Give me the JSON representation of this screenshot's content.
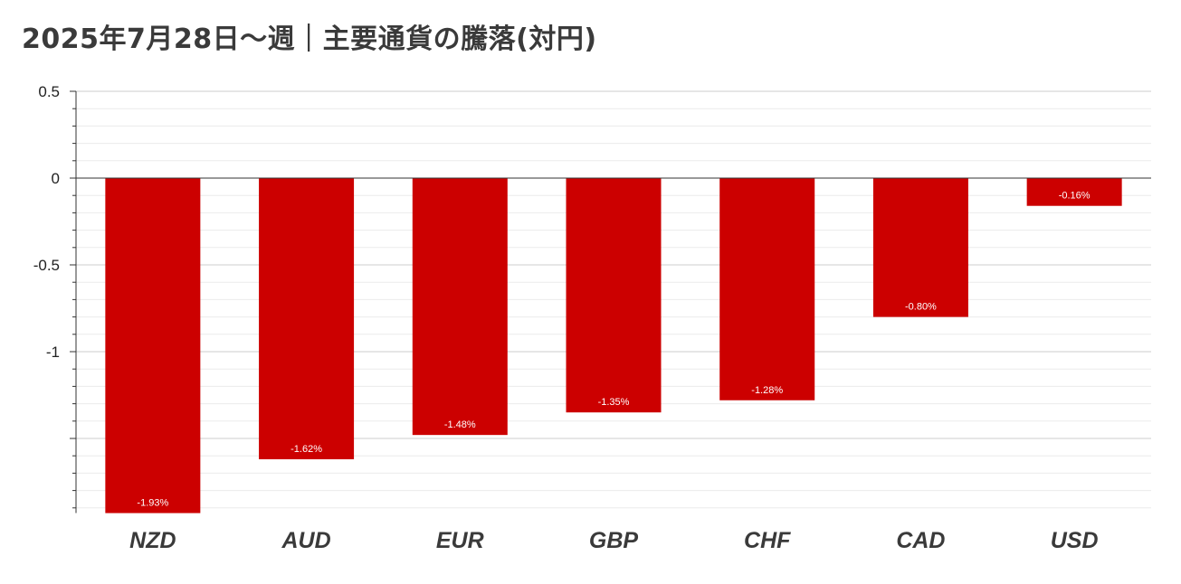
{
  "chart_data": {
    "type": "bar",
    "title": "2025年7月28日〜週｜主要通貨の騰落(対円)",
    "categories": [
      "NZD",
      "AUD",
      "EUR",
      "GBP",
      "CHF",
      "CAD",
      "USD"
    ],
    "values": [
      -1.93,
      -1.62,
      -1.48,
      -1.35,
      -1.28,
      -0.8,
      -0.16
    ],
    "data_labels": [
      "-1.93%",
      "-1.62%",
      "-1.48%",
      "-1.35%",
      "-1.28%",
      "-0.80%",
      "-0.16%"
    ],
    "yticks": [
      0.5,
      0,
      -0.5,
      -1
    ],
    "ytick_labels": [
      "0.5",
      "0",
      "-0.5",
      "-1"
    ],
    "ylim": [
      -1.93,
      0.5
    ],
    "grid": true,
    "legend": "none",
    "bar_color": "#cc0000",
    "xlabel": "",
    "ylabel": ""
  }
}
